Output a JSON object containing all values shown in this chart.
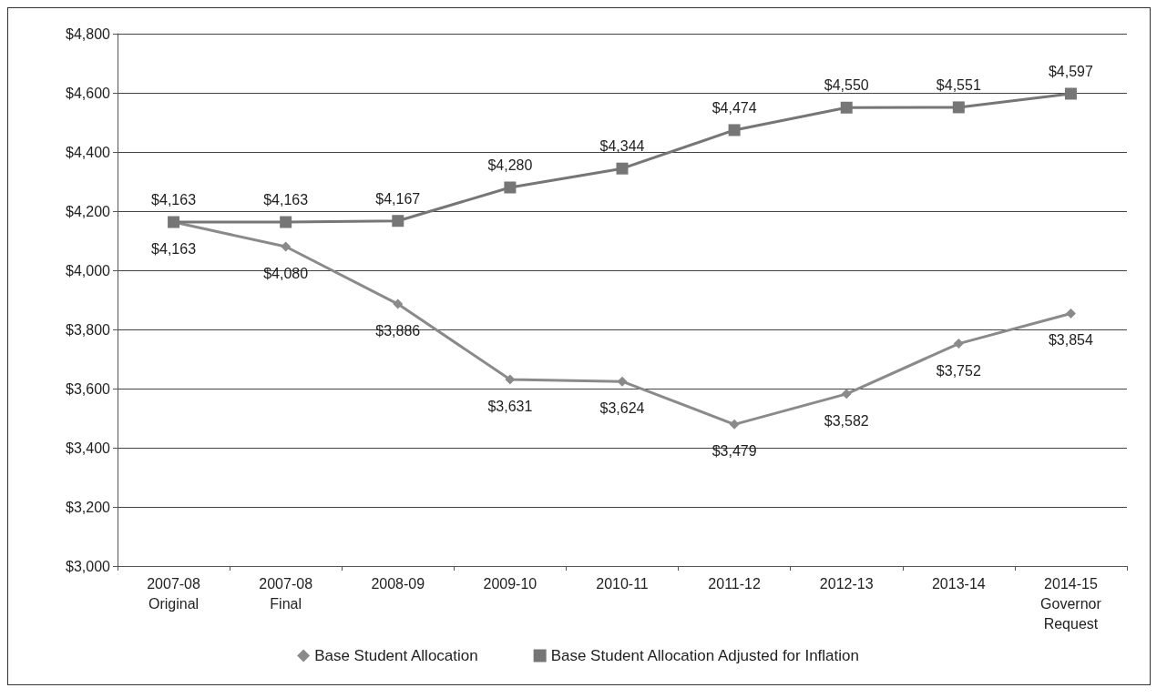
{
  "chart_data": {
    "type": "line",
    "categories": [
      "2007-08\nOriginal",
      "2007-08\nFinal",
      "2008-09",
      "2009-10",
      "2010-11",
      "2011-12",
      "2012-13",
      "2013-14",
      "2014-15\nGovernor\nRequest"
    ],
    "series": [
      {
        "name": "Base Student Allocation",
        "color": "#8a8a8a",
        "marker": "diamond",
        "values": [
          4163,
          4080,
          3886,
          3631,
          3624,
          3479,
          3582,
          3752,
          3854
        ],
        "value_labels": [
          "$4,163",
          "$4,080",
          "$3,886",
          "$3,631",
          "$3,624",
          "$3,479",
          "$3,582",
          "$3,752",
          "$3,854"
        ]
      },
      {
        "name": "Base Student Allocation Adjusted for Inflation",
        "color": "#767676",
        "marker": "square",
        "values": [
          4163,
          4163,
          4167,
          4280,
          4344,
          4474,
          4550,
          4551,
          4597
        ],
        "value_labels": [
          "$4,163",
          "$4,163",
          "$4,167",
          "$4,280",
          "$4,344",
          "$4,474",
          "$4,550",
          "$4,551",
          "$4,597"
        ]
      }
    ],
    "ylim": [
      3000,
      4800
    ],
    "yticks": [
      {
        "value": 3000,
        "label": "$3,000"
      },
      {
        "value": 3200,
        "label": "$3,200"
      },
      {
        "value": 3400,
        "label": "$3,400"
      },
      {
        "value": 3600,
        "label": "$3,600"
      },
      {
        "value": 3800,
        "label": "$3,800"
      },
      {
        "value": 4000,
        "label": "$4,000"
      },
      {
        "value": 4200,
        "label": "$4,200"
      },
      {
        "value": 4400,
        "label": "$4,400"
      },
      {
        "value": 4600,
        "label": "$4,600"
      },
      {
        "value": 4800,
        "label": "$4,800"
      }
    ],
    "grid": "y",
    "legend": "bottom",
    "line_style": "solid"
  }
}
